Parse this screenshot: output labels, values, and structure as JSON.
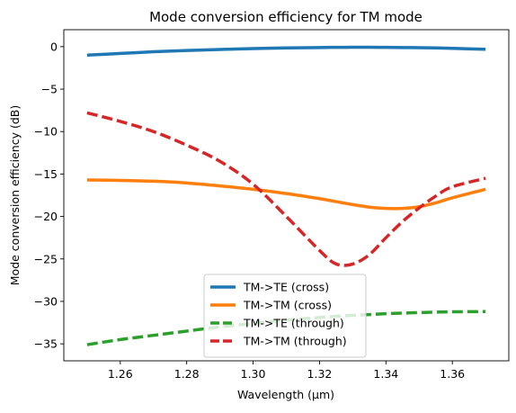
{
  "chart_data": {
    "type": "line",
    "title": "Mode conversion efficiency for TM mode",
    "xlabel": "Wavelength (μm)",
    "ylabel": "Mode conversion efficiency (dB)",
    "xlim": [
      1.243,
      1.377
    ],
    "ylim": [
      -37,
      2
    ],
    "xticks": [
      1.26,
      1.28,
      1.3,
      1.32,
      1.34,
      1.36
    ],
    "xtick_labels": [
      "1.26",
      "1.28",
      "1.30",
      "1.32",
      "1.34",
      "1.36"
    ],
    "yticks": [
      0,
      -5,
      -10,
      -15,
      -20,
      -25,
      -30,
      -35
    ],
    "ytick_labels": [
      "0",
      "−5",
      "−10",
      "−15",
      "−20",
      "−25",
      "−30",
      "−35"
    ],
    "grid": false,
    "legend_position": "lower center",
    "x": [
      1.25,
      1.26,
      1.27,
      1.28,
      1.29,
      1.3,
      1.31,
      1.32,
      1.325,
      1.33,
      1.335,
      1.34,
      1.345,
      1.35,
      1.355,
      1.36,
      1.37
    ],
    "series": [
      {
        "name": "TM->TE (cross)",
        "color": "#1f77b4",
        "style": "solid",
        "values": [
          -1.0,
          -0.8,
          -0.6,
          -0.45,
          -0.33,
          -0.22,
          -0.15,
          -0.1,
          -0.08,
          -0.07,
          -0.07,
          -0.08,
          -0.1,
          -0.12,
          -0.15,
          -0.2,
          -0.3
        ]
      },
      {
        "name": "TM->TM (cross)",
        "color": "#ff7f0e",
        "style": "solid",
        "values": [
          -15.7,
          -15.75,
          -15.85,
          -16.05,
          -16.4,
          -16.8,
          -17.3,
          -17.9,
          -18.25,
          -18.6,
          -18.9,
          -19.05,
          -19.05,
          -18.85,
          -18.4,
          -17.8,
          -16.8
        ]
      },
      {
        "name": "TM->TE (through)",
        "color": "#2ca02c",
        "style": "dashed",
        "values": [
          -35.1,
          -34.5,
          -34.0,
          -33.5,
          -33.0,
          -32.6,
          -32.2,
          -31.9,
          -31.75,
          -31.65,
          -31.55,
          -31.45,
          -31.38,
          -31.32,
          -31.27,
          -31.23,
          -31.2
        ]
      },
      {
        "name": "TM->TM (through)",
        "color": "#d62728",
        "style": "dashed",
        "values": [
          -7.8,
          -8.8,
          -10.0,
          -11.6,
          -13.5,
          -16.2,
          -20.0,
          -24.0,
          -25.6,
          -25.6,
          -24.5,
          -22.5,
          -20.6,
          -19.0,
          -17.6,
          -16.5,
          -15.5
        ]
      }
    ]
  }
}
